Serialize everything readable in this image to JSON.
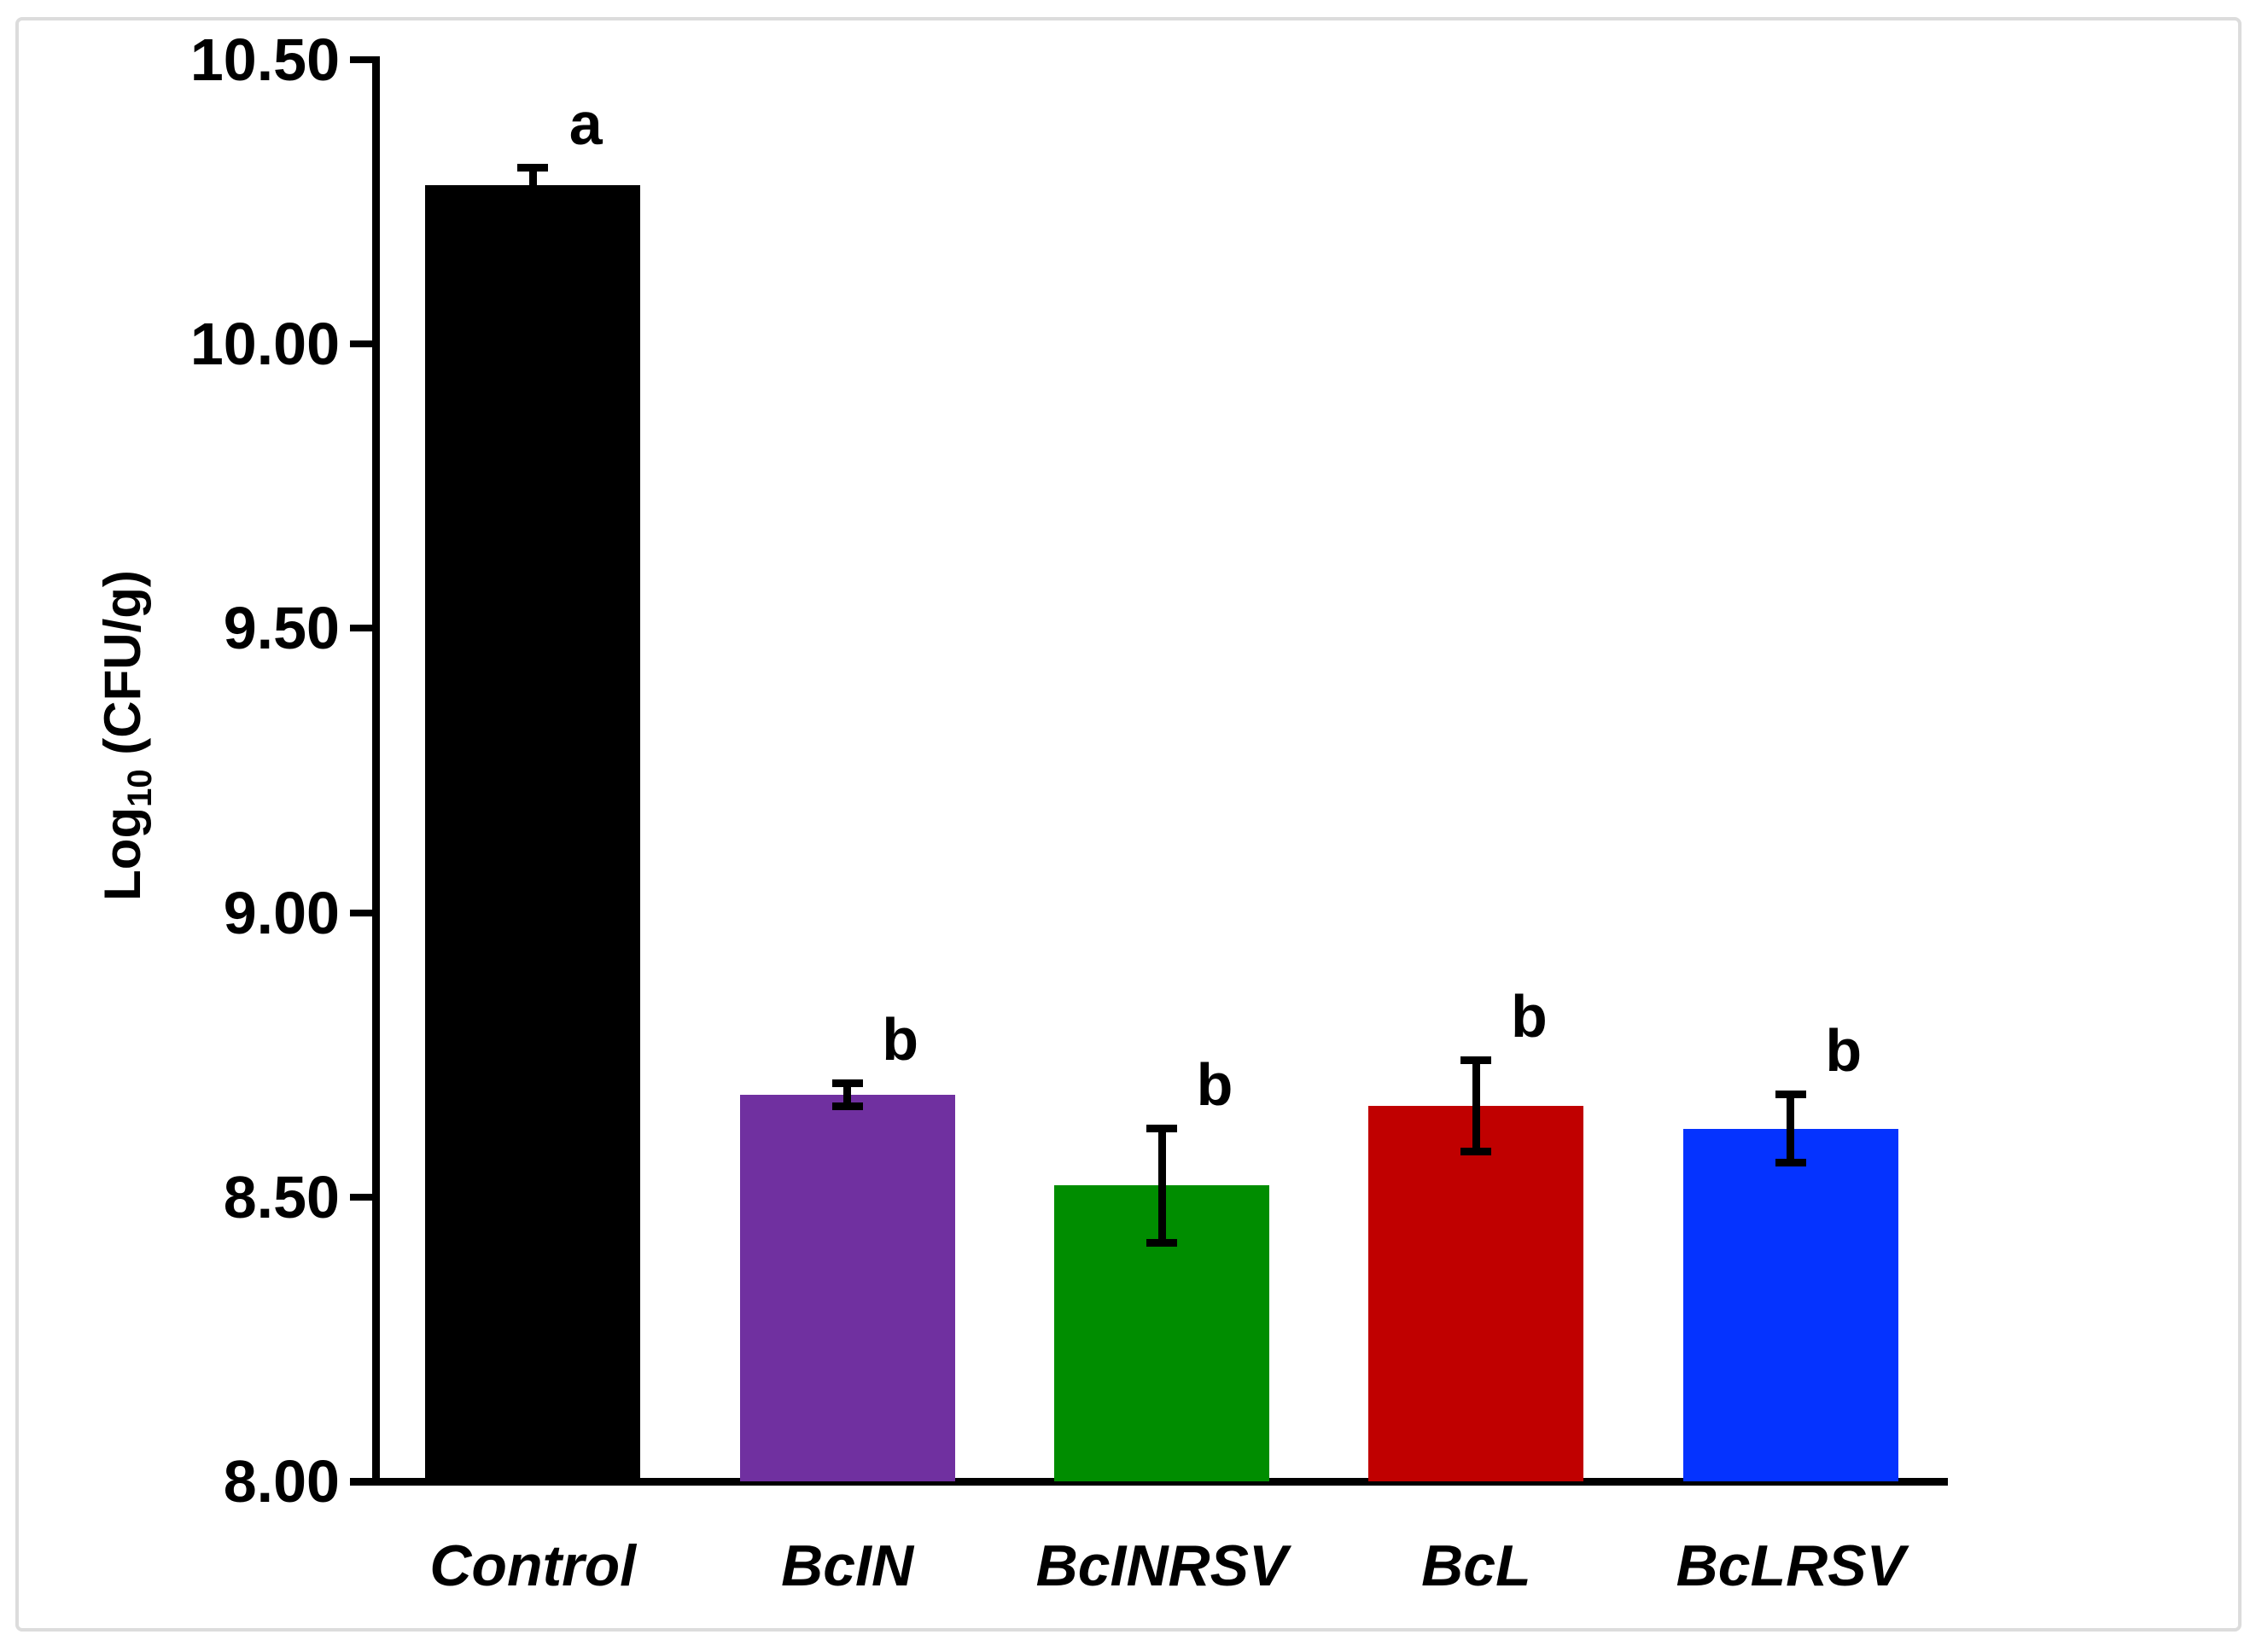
{
  "chart_data": {
    "type": "bar",
    "title": "",
    "ylabel": "Log10 (CFU/g)",
    "ylabel_parts": {
      "prefix": "Log",
      "subscript": "10",
      "suffix": " (CFU/g)"
    },
    "ylim": [
      8.0,
      10.5
    ],
    "ytick_step": 0.5,
    "ytick_labels": [
      "8.00",
      "8.50",
      "9.00",
      "9.50",
      "10.00",
      "10.50"
    ],
    "categories": [
      "Control",
      "BcIN",
      "BcINRSV",
      "BcL",
      "BcLRSV"
    ],
    "values": [
      10.28,
      8.68,
      8.52,
      8.66,
      8.62
    ],
    "errors": [
      0.03,
      0.02,
      0.1,
      0.08,
      0.06
    ],
    "sig_letters": [
      "a",
      "b",
      "b",
      "b",
      "b"
    ],
    "bar_colors": [
      "#000000",
      "#7030A0",
      "#008D00",
      "#C00000",
      "#0533FF"
    ],
    "axis_color": "#000000",
    "frame_color": "#dcdcdc",
    "grid": false,
    "legend": false
  }
}
